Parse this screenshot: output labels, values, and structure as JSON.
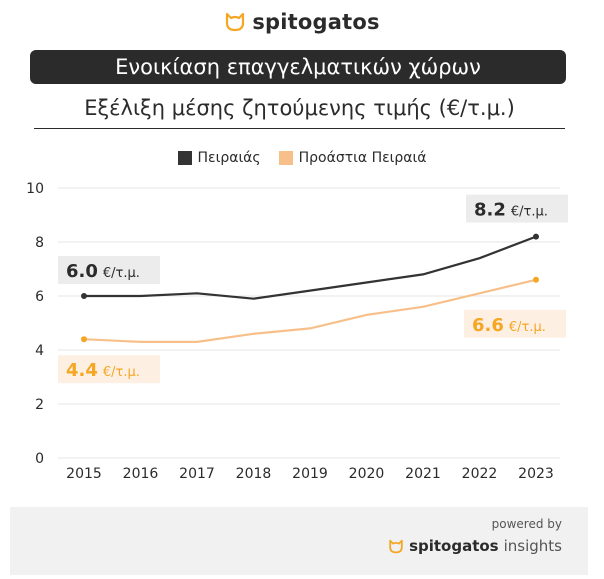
{
  "brand": {
    "logo_text": "spitogatos",
    "footer_brand": "spitogatos",
    "footer_suffix": "insights",
    "powered_by": "powered by"
  },
  "header": {
    "banner_title": "Ενοικίαση επαγγελματικών χώρων",
    "subtitle": "Εξέλιξη μέσης ζητούμενης τιμής (€/τ.μ.)"
  },
  "colors": {
    "dark": "#333333",
    "orange": "#f5a623",
    "orange_light": "#f7c08a",
    "annotation_bg": "#ececec",
    "annotation_bg_orange": "#fdf0e3"
  },
  "chart_data": {
    "type": "line",
    "categories": [
      "2015",
      "2016",
      "2017",
      "2018",
      "2019",
      "2020",
      "2021",
      "2022",
      "2023"
    ],
    "ylim": [
      0,
      10
    ],
    "yticks": [
      "0",
      "2",
      "4",
      "6",
      "8",
      "10"
    ],
    "grid": true,
    "legend_position": "top-center",
    "series": [
      {
        "name": "Πειραιάς",
        "values": [
          6.0,
          6.0,
          6.1,
          5.9,
          6.2,
          6.5,
          6.8,
          7.4,
          8.2
        ]
      },
      {
        "name": "Προάστια Πειραιά",
        "values": [
          4.4,
          4.3,
          4.3,
          4.6,
          4.8,
          5.3,
          5.6,
          6.1,
          6.6
        ]
      }
    ],
    "annotations": [
      {
        "value": "6.0",
        "unit": "€/τ.μ."
      },
      {
        "value": "8.2",
        "unit": "€/τ.μ."
      },
      {
        "value": "4.4",
        "unit": "€/τ.μ."
      },
      {
        "value": "6.6",
        "unit": "€/τ.μ."
      }
    ]
  }
}
